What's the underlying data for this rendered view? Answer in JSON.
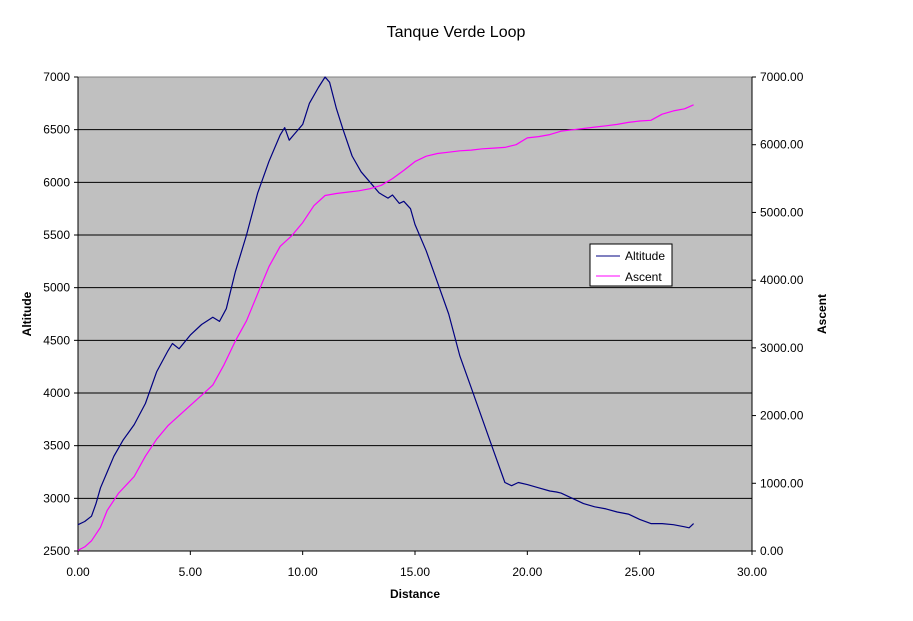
{
  "chart_data": {
    "type": "line",
    "title": "Tanque Verde Loop",
    "xlabel": "Distance",
    "ylabel": "Altitude",
    "y2label": "Ascent",
    "xlim": [
      0,
      30
    ],
    "ylim": [
      2500,
      7000
    ],
    "y2lim": [
      0,
      7000
    ],
    "x_ticks": [
      "0.00",
      "5.00",
      "10.00",
      "15.00",
      "20.00",
      "25.00",
      "30.00"
    ],
    "y_ticks": [
      "2500",
      "3000",
      "3500",
      "4000",
      "4500",
      "5000",
      "5500",
      "6000",
      "6500",
      "7000"
    ],
    "y2_ticks": [
      "0.00",
      "1000.00",
      "2000.00",
      "3000.00",
      "4000.00",
      "5000.00",
      "6000.00",
      "7000.00"
    ],
    "grid": true,
    "plot_background": "#c0c0c0",
    "legend_position": "right",
    "series": [
      {
        "name": "Altitude",
        "axis": "left",
        "color": "#000080",
        "x": [
          0,
          0.3,
          0.6,
          0.8,
          1.0,
          1.3,
          1.6,
          2.0,
          2.5,
          3.0,
          3.5,
          4.0,
          4.2,
          4.5,
          5.0,
          5.5,
          6.0,
          6.3,
          6.6,
          7.0,
          7.5,
          8.0,
          8.5,
          9.0,
          9.2,
          9.4,
          9.6,
          10.0,
          10.3,
          10.7,
          11.0,
          11.2,
          11.5,
          11.8,
          12.2,
          12.6,
          13.0,
          13.4,
          13.8,
          14.0,
          14.3,
          14.5,
          14.8,
          15.0,
          15.5,
          16.0,
          16.5,
          17.0,
          17.5,
          18.0,
          18.5,
          19.0,
          19.3,
          19.6,
          20.0,
          20.5,
          21.0,
          21.3,
          21.5,
          22.0,
          22.5,
          23.0,
          23.5,
          24.0,
          24.5,
          25.0,
          25.5,
          26.0,
          26.5,
          27.0,
          27.2,
          27.4
        ],
        "y": [
          2750,
          2780,
          2830,
          2950,
          3100,
          3250,
          3400,
          3550,
          3700,
          3900,
          4200,
          4400,
          4470,
          4420,
          4550,
          4650,
          4720,
          4680,
          4800,
          5150,
          5500,
          5900,
          6200,
          6450,
          6520,
          6400,
          6450,
          6550,
          6750,
          6900,
          7000,
          6950,
          6700,
          6500,
          6250,
          6100,
          6000,
          5900,
          5850,
          5880,
          5800,
          5820,
          5750,
          5600,
          5350,
          5050,
          4750,
          4350,
          4050,
          3750,
          3450,
          3150,
          3120,
          3150,
          3130,
          3100,
          3070,
          3060,
          3050,
          3000,
          2950,
          2920,
          2900,
          2870,
          2850,
          2800,
          2760,
          2760,
          2750,
          2730,
          2720,
          2760
        ]
      },
      {
        "name": "Ascent",
        "axis": "right",
        "color": "#ff00ff",
        "x": [
          0,
          0.3,
          0.6,
          1.0,
          1.3,
          1.8,
          2.5,
          3.0,
          3.5,
          4.0,
          4.5,
          5.0,
          5.5,
          6.0,
          6.5,
          7.0,
          7.5,
          8.0,
          8.5,
          9.0,
          9.5,
          10.0,
          10.5,
          11.0,
          11.5,
          12.0,
          12.5,
          13.0,
          13.5,
          14.0,
          14.5,
          15.0,
          15.5,
          16.0,
          16.5,
          17.0,
          17.5,
          18.0,
          18.5,
          19.0,
          19.5,
          20.0,
          20.5,
          21.0,
          21.5,
          22.0,
          22.5,
          23.0,
          23.5,
          24.0,
          24.5,
          25.0,
          25.5,
          26.0,
          26.5,
          27.0,
          27.2,
          27.4
        ],
        "y": [
          10,
          60,
          150,
          350,
          600,
          850,
          1100,
          1400,
          1650,
          1850,
          2000,
          2150,
          2300,
          2450,
          2750,
          3100,
          3400,
          3800,
          4200,
          4500,
          4650,
          4850,
          5100,
          5250,
          5280,
          5300,
          5320,
          5350,
          5400,
          5500,
          5620,
          5750,
          5830,
          5870,
          5890,
          5910,
          5920,
          5940,
          5950,
          5960,
          6000,
          6100,
          6120,
          6150,
          6200,
          6220,
          6240,
          6260,
          6280,
          6300,
          6330,
          6350,
          6360,
          6450,
          6500,
          6530,
          6560,
          6590
        ]
      }
    ]
  }
}
